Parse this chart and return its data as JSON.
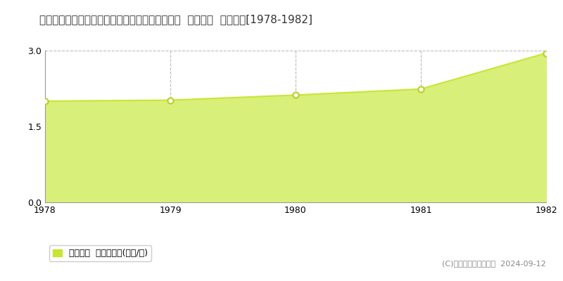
{
  "title": "青森県南津軽郡大鰐町大字森山字上福田５６番１  地価公示  地価推移[1978-1982]",
  "years": [
    1978,
    1979,
    1980,
    1981,
    1982
  ],
  "values": [
    2.0,
    2.02,
    2.12,
    2.24,
    2.95
  ],
  "ylim": [
    0,
    3
  ],
  "yticks": [
    0,
    1.5,
    3
  ],
  "line_color": "#c8e632",
  "fill_color": "#d8ef7a",
  "marker_color": "white",
  "marker_edge_color": "#b8d020",
  "grid_color": "#bbbbbb",
  "background_color": "#ffffff",
  "legend_label": "地価公示  平均坪単価(万円/坪)",
  "legend_marker_color": "#c8e632",
  "copyright_text": "(C)土地価格ドットコム  2024-09-12",
  "title_fontsize": 11,
  "tick_fontsize": 9,
  "legend_fontsize": 9
}
